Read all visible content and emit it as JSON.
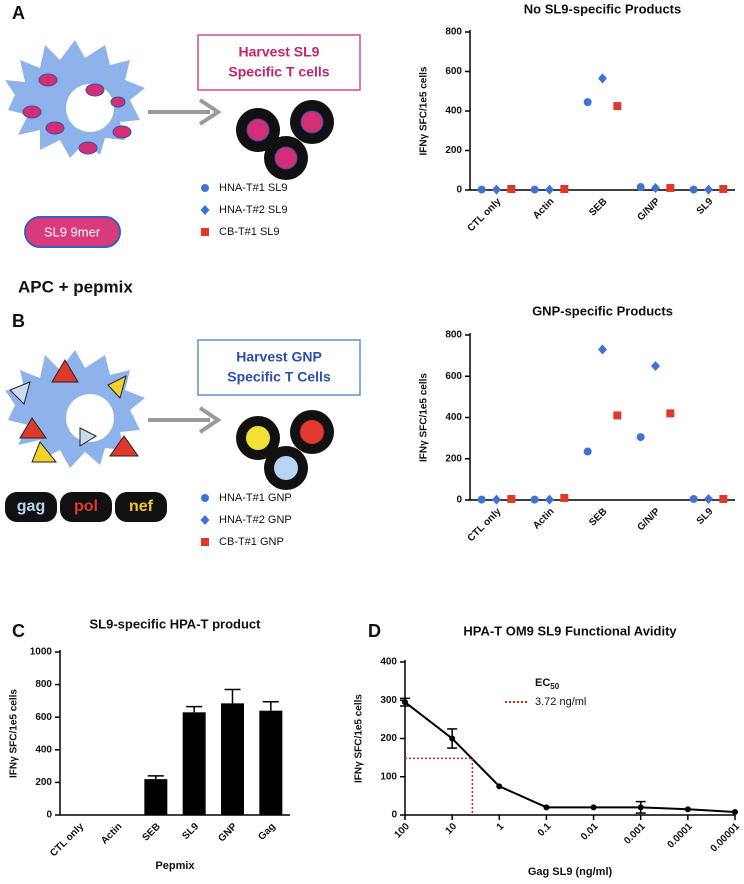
{
  "panels": {
    "a": "A",
    "b": "B",
    "c": "C",
    "d": "D"
  },
  "diagram_a": {
    "box": [
      "Harvest SL9",
      "Specific T cells"
    ],
    "peptide": "SL9 9mer"
  },
  "section": "APC + pepmix",
  "diagram_b": {
    "box": [
      "Harvest GNP",
      "Specific T Cells"
    ],
    "peptides": [
      "gag",
      "pol",
      "nef"
    ]
  },
  "chart_data": [
    {
      "type": "dot",
      "title": "No SL9-specific Products",
      "ylabel": "IFNγ SFC/1e5 cells",
      "categories": [
        "CTL only",
        "Actin",
        "SEB",
        "G/N/P",
        "SL9"
      ],
      "legend": "left",
      "series": [
        {
          "name": "HNA-T#1 SL9",
          "color": "#3f72d6",
          "marker": "circle",
          "values": [
            2,
            2,
            445,
            15,
            2
          ]
        },
        {
          "name": "HNA-T#2 SL9",
          "color": "#3f72d6",
          "marker": "diamond",
          "values": [
            2,
            2,
            565,
            10,
            2
          ]
        },
        {
          "name": "CB-T#1 SL9",
          "color": "#e0392b",
          "marker": "square",
          "values": [
            5,
            5,
            425,
            10,
            5
          ]
        }
      ],
      "ylim": [
        0,
        800
      ],
      "yticks": [
        0,
        200,
        400,
        600,
        800
      ]
    },
    {
      "type": "dot",
      "title": "GNP-specific Products",
      "ylabel": "IFNγ SFC/1e5 cells",
      "categories": [
        "CTL only",
        "Actin",
        "SEB",
        "G/N/P",
        "SL9"
      ],
      "legend": "left",
      "series": [
        {
          "name": "HNA-T#1 GNP",
          "color": "#3f72d6",
          "marker": "circle",
          "values": [
            2,
            2,
            235,
            305,
            5
          ]
        },
        {
          "name": "HNA-T#2 GNP",
          "color": "#3f72d6",
          "marker": "diamond",
          "values": [
            2,
            2,
            730,
            650,
            5
          ]
        },
        {
          "name": "CB-T#1 GNP",
          "color": "#e0392b",
          "marker": "square",
          "values": [
            5,
            10,
            410,
            420,
            5
          ]
        }
      ],
      "ylim": [
        0,
        800
      ],
      "yticks": [
        0,
        200,
        400,
        600,
        800
      ]
    },
    {
      "type": "bar",
      "title": "SL9-specific HPA-T product",
      "ylabel": "IFNγ SFC/1e5 cells",
      "xlabel": "Pepmix",
      "categories": [
        "CTL only",
        "Actin",
        "SEB",
        "SL9",
        "GNP",
        "Gag"
      ],
      "values": [
        0,
        0,
        220,
        630,
        685,
        640
      ],
      "errors": [
        0,
        0,
        20,
        35,
        85,
        55
      ],
      "color": "#000000",
      "ylim": [
        0,
        1000
      ],
      "yticks": [
        0,
        200,
        400,
        600,
        800,
        1000
      ]
    },
    {
      "type": "line",
      "title": "HPA-T OM9 SL9 Functional Avidity",
      "ylabel": "IFNγ SFC/1e5 cells",
      "xlabel": "Gag SL9 (ng/ml)",
      "x": [
        100,
        10,
        1,
        0.1,
        0.01,
        0.001,
        0.0001,
        1e-05
      ],
      "values": [
        295,
        200,
        75,
        20,
        20,
        20,
        15,
        8
      ],
      "errors": [
        10,
        25,
        0,
        0,
        0,
        15,
        0,
        0
      ],
      "color": "#000000",
      "xlog": true,
      "xlim": [
        100,
        1e-05
      ],
      "xticks": [
        100,
        10,
        1,
        0.1,
        0.01,
        0.001,
        0.0001,
        1e-05
      ],
      "ylim": [
        0,
        400
      ],
      "yticks": [
        0,
        100,
        200,
        300,
        400
      ],
      "ec50_title": "EC",
      "ec50_sub": "50",
      "ec50": {
        "value": 3.72,
        "label": "3.72 ng/ml"
      },
      "ec50_response": 148,
      "ec50_color": "#d0281e"
    }
  ]
}
